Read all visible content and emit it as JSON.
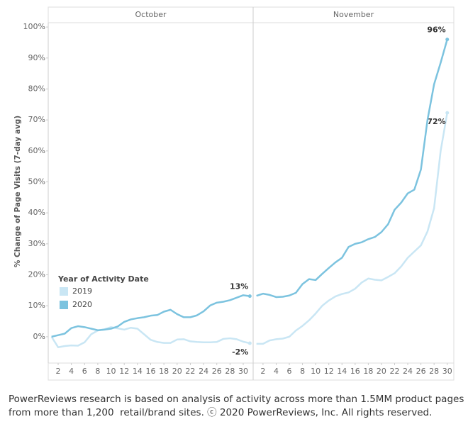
{
  "chart_data": {
    "type": "line",
    "y_label": "% Change of Page Visits (7-day avg)",
    "legend_title": "Year of Activity Date",
    "ylim": [
      -8.5,
      101.4
    ],
    "yticks": [
      {
        "value": 0,
        "label": "0%"
      },
      {
        "value": 10,
        "label": "10%"
      },
      {
        "value": 20,
        "label": "20%"
      },
      {
        "value": 30,
        "label": "30%"
      },
      {
        "value": 40,
        "label": "40%"
      },
      {
        "value": 50,
        "label": "50%"
      },
      {
        "value": 60,
        "label": "60%"
      },
      {
        "value": 70,
        "label": "70%"
      },
      {
        "value": 80,
        "label": "80%"
      },
      {
        "value": 90,
        "label": "90%"
      },
      {
        "value": 100,
        "label": "100%"
      }
    ],
    "grid": false,
    "panels": [
      {
        "title": "October",
        "xlim": [
          0.5,
          31.5
        ],
        "x": [
          1,
          2,
          3,
          4,
          5,
          6,
          7,
          8,
          9,
          10,
          11,
          12,
          13,
          14,
          15,
          16,
          17,
          18,
          19,
          20,
          21,
          22,
          23,
          24,
          25,
          26,
          27,
          28,
          29,
          30,
          31
        ],
        "xticks": [
          2,
          4,
          6,
          8,
          10,
          12,
          14,
          16,
          18,
          20,
          22,
          24,
          26,
          28,
          30
        ]
      },
      {
        "title": "November",
        "xlim": [
          0.5,
          31
        ],
        "x": [
          1,
          2,
          3,
          4,
          5,
          6,
          7,
          8,
          9,
          10,
          11,
          12,
          13,
          14,
          15,
          16,
          17,
          18,
          19,
          20,
          21,
          22,
          23,
          24,
          25,
          26,
          27,
          28,
          29,
          30
        ],
        "xticks": [
          2,
          4,
          6,
          8,
          10,
          12,
          14,
          16,
          18,
          20,
          22,
          24,
          26,
          28,
          30
        ]
      }
    ],
    "series": [
      {
        "name": "2019",
        "color": "#c9e6f4",
        "values": [
          [
            0,
            -3.4,
            -3.0,
            -2.8,
            -2.9,
            -1.8,
            0.8,
            2.0,
            2.4,
            3.1,
            2.7,
            2.3,
            2.9,
            2.6,
            0.8,
            -1.0,
            -1.7,
            -2.0,
            -2.0,
            -0.9,
            -0.8,
            -1.5,
            -1.7,
            -1.8,
            -1.8,
            -1.7,
            -0.7,
            -0.5,
            -0.8,
            -1.6,
            -2.1
          ],
          [
            -2.3,
            -2.3,
            -1.2,
            -0.8,
            -0.6,
            0.0,
            2.0,
            3.5,
            5.3,
            7.5,
            10.0,
            11.7,
            13.0,
            13.8,
            14.3,
            15.5,
            17.5,
            18.8,
            18.4,
            18.2,
            19.3,
            20.5,
            22.7,
            25.5,
            27.5,
            29.5,
            34.0,
            41.5,
            60.0,
            72.3
          ]
        ],
        "value_labels": [
          [
            null,
            null,
            null,
            null,
            null,
            null,
            null,
            null,
            null,
            null,
            null,
            null,
            null,
            null,
            null,
            null,
            null,
            null,
            null,
            null,
            null,
            null,
            null,
            null,
            null,
            null,
            null,
            null,
            null,
            null,
            "-2%"
          ],
          [
            null,
            null,
            null,
            null,
            null,
            null,
            null,
            null,
            null,
            null,
            null,
            null,
            null,
            null,
            null,
            null,
            null,
            null,
            null,
            null,
            null,
            null,
            null,
            null,
            null,
            null,
            null,
            null,
            null,
            "72%"
          ]
        ]
      },
      {
        "name": "2020",
        "color": "#7cc3df",
        "values": [
          [
            0,
            0.5,
            1.0,
            2.8,
            3.4,
            3.1,
            2.6,
            2.1,
            2.3,
            2.6,
            3.3,
            4.8,
            5.6,
            6.0,
            6.3,
            6.8,
            7.0,
            8.1,
            8.7,
            7.3,
            6.3,
            6.3,
            6.9,
            8.2,
            10.1,
            11.0,
            11.3,
            11.8,
            12.6,
            13.4,
            13.1
          ],
          [
            13.2,
            13.9,
            13.5,
            12.8,
            12.9,
            13.3,
            14.2,
            17.0,
            18.6,
            18.3,
            20.3,
            22.2,
            24.0,
            25.5,
            29.0,
            30.0,
            30.5,
            31.5,
            32.2,
            33.8,
            36.3,
            41.0,
            43.3,
            46.3,
            47.5,
            54.0,
            70.0,
            81.5,
            88.5,
            96.0
          ]
        ],
        "value_labels": [
          [
            null,
            null,
            null,
            null,
            null,
            null,
            null,
            null,
            null,
            null,
            null,
            null,
            null,
            null,
            null,
            null,
            null,
            null,
            null,
            null,
            null,
            null,
            null,
            null,
            null,
            null,
            null,
            null,
            null,
            null,
            "13%"
          ],
          [
            null,
            null,
            null,
            null,
            null,
            null,
            null,
            null,
            null,
            null,
            null,
            null,
            null,
            null,
            null,
            null,
            null,
            null,
            null,
            null,
            null,
            null,
            null,
            null,
            null,
            null,
            null,
            null,
            null,
            "96%"
          ]
        ]
      }
    ],
    "footnote": [
      "PowerReviews research is based on analysis of activity across more than 1.5MM product pages",
      "from more than 1,200  retail/brand sites. ⓒ 2020 PowerReviews, Inc. All rights reserved."
    ]
  }
}
